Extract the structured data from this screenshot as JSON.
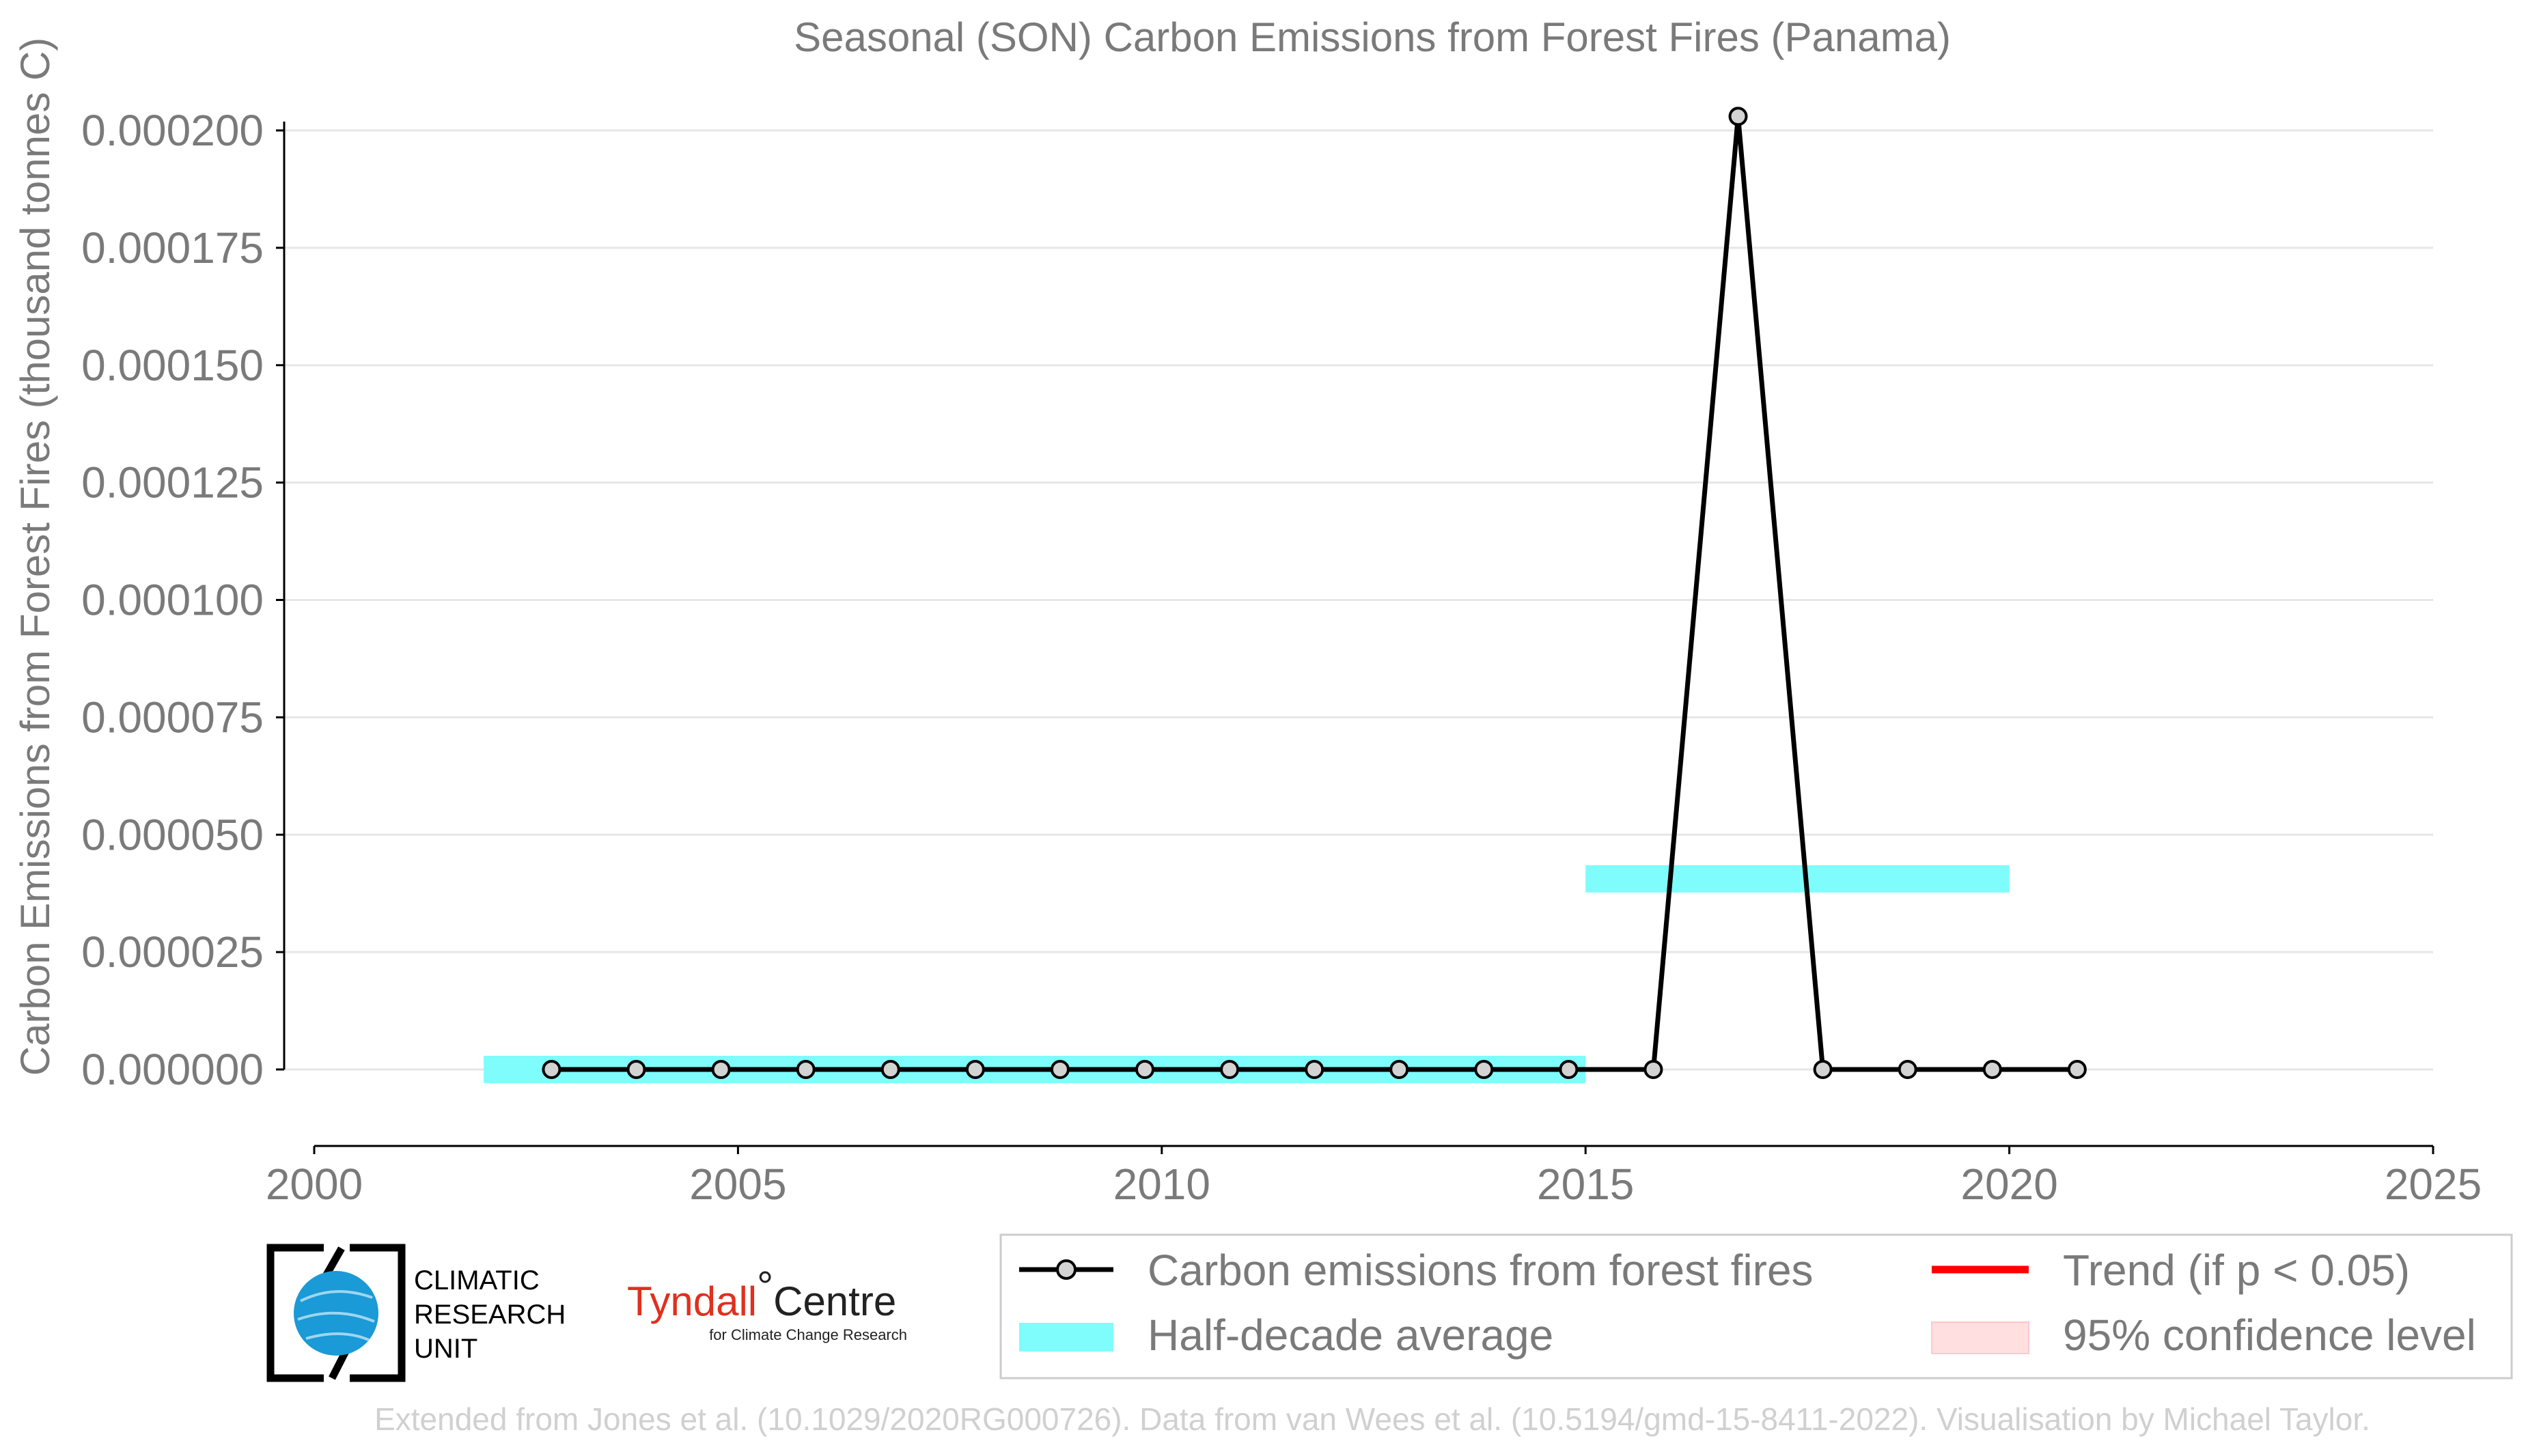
{
  "chart_data": {
    "type": "line",
    "title": "Seasonal (SON) Carbon Emissions from Forest Fires (Panama)",
    "xlabel": "",
    "ylabel": "Carbon Emissions from Forest Fires (thousand tonnes C)",
    "xlim": [
      2000,
      2025
    ],
    "ylim": [
      -1.6e-05,
      0.000203
    ],
    "xticks": [
      2000,
      2005,
      2010,
      2015,
      2020,
      2025
    ],
    "xtick_labels": [
      "2000",
      "2005",
      "2010",
      "2015",
      "2020",
      "2025"
    ],
    "yticks": [
      0,
      2.5e-05,
      5e-05,
      7.5e-05,
      0.0001,
      0.000125,
      0.00015,
      0.000175,
      0.0002
    ],
    "ytick_labels": [
      "0.000000",
      "0.000025",
      "0.000050",
      "0.000075",
      "0.000100",
      "0.000125",
      "0.000150",
      "0.000175",
      "0.000200"
    ],
    "grid": "horizontal",
    "legend_position": "bottom-right",
    "series": [
      {
        "name": "Carbon emissions from forest fires",
        "color": "#000000",
        "marker": "circle",
        "x": [
          2002.8,
          2003.8,
          2004.8,
          2005.8,
          2006.8,
          2007.8,
          2008.8,
          2009.8,
          2010.8,
          2011.8,
          2012.8,
          2013.8,
          2014.8,
          2015.8,
          2016.8,
          2017.8,
          2018.8,
          2019.8,
          2020.8
        ],
        "y": [
          0,
          0,
          0,
          0,
          0,
          0,
          0,
          0,
          0,
          0,
          0,
          0,
          0,
          0,
          0.000203,
          0,
          0,
          0,
          0
        ]
      },
      {
        "name": "Half-decade average",
        "color": "#7ffcfc",
        "type": "step-bars",
        "segments": [
          {
            "x0": 2002,
            "x1": 2015,
            "y": 0
          },
          {
            "x0": 2015,
            "x1": 2020,
            "y": 4.06e-05
          }
        ]
      },
      {
        "name": "Trend (if p < 0.05)",
        "color": "#ff0000",
        "values": []
      },
      {
        "name": "95% confidence level",
        "color": "#ffdfe0",
        "values": []
      }
    ]
  },
  "logos": {
    "cru_lines": [
      "CLIMATIC",
      "RESEARCH",
      "UNIT"
    ],
    "tyndall_main": "Tyndall",
    "tyndall_centre": "Centre",
    "tyndall_sub": "for Climate Change Research"
  },
  "footer": "Extended from Jones et al. (10.1029/2020RG000726). Data from van Wees et al. (10.5194/gmd-15-8411-2022). Visualisation by Michael Taylor.",
  "colors": {
    "text": "#7a7a7a",
    "grid": "#e6e6e6",
    "series_line": "#000000",
    "marker_fill": "#d3d3d3",
    "half_decade": "#7ffcfc",
    "trend": "#ff0000",
    "confidence": "#ffdfe0",
    "cru_globe": "#1a9ad6"
  }
}
